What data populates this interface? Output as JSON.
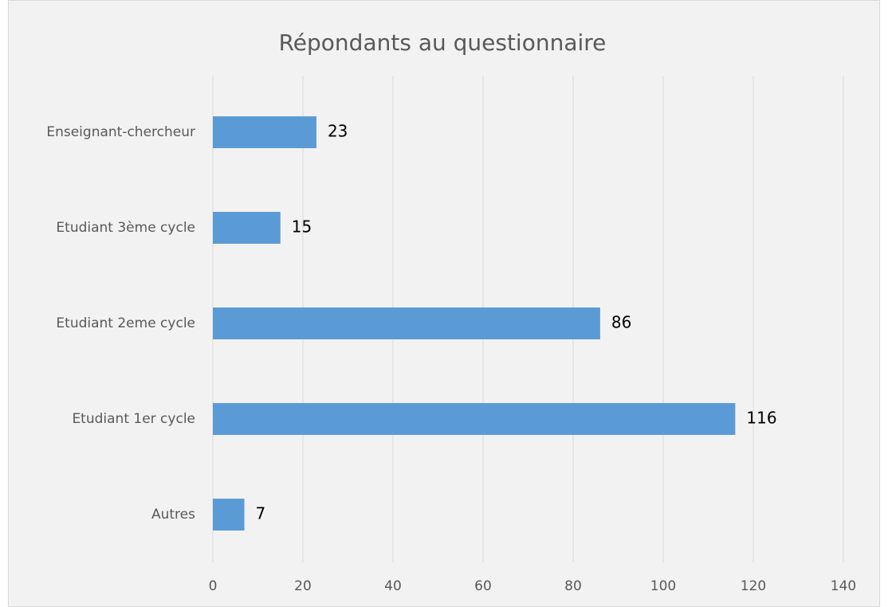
{
  "chart_data": {
    "type": "hbar",
    "title": "Répondants au questionnaire",
    "categories": [
      "Enseignant-chercheur",
      "Etudiant 3ème cycle",
      "Etudiant 2eme cycle",
      "Etudiant 1er cycle",
      "Autres"
    ],
    "values": [
      23,
      15,
      86,
      116,
      7
    ],
    "color": "#5b9bd5",
    "xlim": [
      0,
      140
    ],
    "xticks": [
      0,
      20,
      40,
      60,
      80,
      100,
      120,
      140
    ],
    "grid": true
  }
}
